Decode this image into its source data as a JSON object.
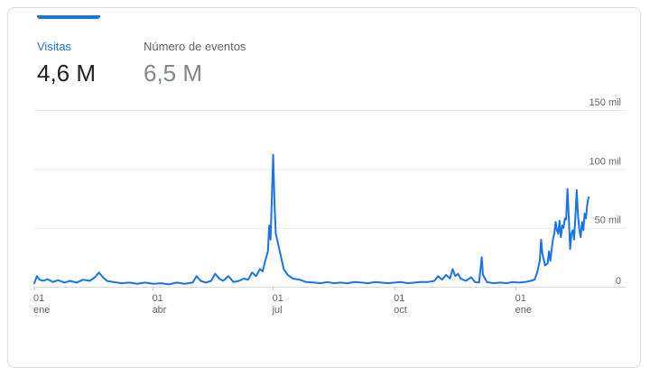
{
  "metrics": [
    {
      "label": "Visitas",
      "value": "4,6 M",
      "active": true
    },
    {
      "label": "Número de eventos",
      "value": "6,5 M",
      "active": false
    }
  ],
  "colors": {
    "accent": "#1a73e8",
    "line": "#1a73e8"
  },
  "chart_data": {
    "type": "line",
    "title": "",
    "xlabel": "",
    "ylabel": "",
    "ylim": [
      0,
      150000
    ],
    "xlim": [
      "2023-01-01",
      "2024-02-25"
    ],
    "grid": true,
    "y_axis_side": "right",
    "y_ticks": [
      {
        "value": 150000,
        "label": "150 mil"
      },
      {
        "value": 100000,
        "label": "100 mil"
      },
      {
        "value": 50000,
        "label": "50 mil"
      },
      {
        "value": 0,
        "label": "0"
      }
    ],
    "x_ticks": [
      {
        "date": "2023-01-01",
        "day": "01",
        "month": "ene"
      },
      {
        "date": "2023-04-01",
        "day": "01",
        "month": "abr"
      },
      {
        "date": "2023-07-01",
        "day": "01",
        "month": "jul"
      },
      {
        "date": "2023-10-01",
        "day": "01",
        "month": "oct"
      },
      {
        "date": "2024-01-01",
        "day": "01",
        "month": "ene"
      }
    ],
    "series": [
      {
        "points": [
          [
            "2023-01-01",
            3000
          ],
          [
            "2023-01-03",
            9000
          ],
          [
            "2023-01-05",
            6000
          ],
          [
            "2023-01-08",
            5000
          ],
          [
            "2023-01-11",
            6500
          ],
          [
            "2023-01-15",
            4000
          ],
          [
            "2023-01-19",
            5500
          ],
          [
            "2023-01-24",
            3500
          ],
          [
            "2023-01-28",
            5000
          ],
          [
            "2023-02-02",
            3500
          ],
          [
            "2023-02-07",
            6000
          ],
          [
            "2023-02-12",
            5000
          ],
          [
            "2023-02-16",
            8000
          ],
          [
            "2023-02-19",
            12000
          ],
          [
            "2023-02-22",
            8000
          ],
          [
            "2023-02-25",
            5000
          ],
          [
            "2023-03-02",
            4000
          ],
          [
            "2023-03-08",
            3000
          ],
          [
            "2023-03-14",
            3500
          ],
          [
            "2023-03-20",
            2500
          ],
          [
            "2023-03-26",
            3500
          ],
          [
            "2023-04-01",
            2500
          ],
          [
            "2023-04-07",
            3000
          ],
          [
            "2023-04-13",
            2000
          ],
          [
            "2023-04-19",
            3500
          ],
          [
            "2023-04-25",
            2500
          ],
          [
            "2023-05-01",
            3500
          ],
          [
            "2023-05-04",
            9000
          ],
          [
            "2023-05-07",
            5000
          ],
          [
            "2023-05-11",
            3500
          ],
          [
            "2023-05-15",
            5000
          ],
          [
            "2023-05-18",
            11000
          ],
          [
            "2023-05-21",
            7000
          ],
          [
            "2023-05-24",
            5000
          ],
          [
            "2023-05-28",
            9000
          ],
          [
            "2023-06-01",
            4000
          ],
          [
            "2023-06-05",
            5000
          ],
          [
            "2023-06-09",
            7000
          ],
          [
            "2023-06-12",
            6000
          ],
          [
            "2023-06-15",
            12000
          ],
          [
            "2023-06-18",
            9000
          ],
          [
            "2023-06-21",
            15000
          ],
          [
            "2023-06-23",
            13000
          ],
          [
            "2023-06-25",
            22000
          ],
          [
            "2023-06-27",
            30000
          ],
          [
            "2023-06-28",
            52000
          ],
          [
            "2023-06-29",
            40000
          ],
          [
            "2023-06-30",
            75000
          ],
          [
            "2023-07-01",
            112000
          ],
          [
            "2023-07-02",
            70000
          ],
          [
            "2023-07-03",
            45000
          ],
          [
            "2023-07-05",
            35000
          ],
          [
            "2023-07-07",
            25000
          ],
          [
            "2023-07-09",
            15000
          ],
          [
            "2023-07-12",
            10000
          ],
          [
            "2023-07-16",
            7000
          ],
          [
            "2023-07-21",
            6000
          ],
          [
            "2023-07-26",
            4000
          ],
          [
            "2023-08-01",
            3500
          ],
          [
            "2023-08-06",
            3000
          ],
          [
            "2023-08-11",
            4000
          ],
          [
            "2023-08-16",
            3000
          ],
          [
            "2023-08-21",
            3500
          ],
          [
            "2023-08-26",
            3000
          ],
          [
            "2023-09-01",
            4000
          ],
          [
            "2023-09-06",
            3500
          ],
          [
            "2023-09-11",
            3000
          ],
          [
            "2023-09-16",
            4000
          ],
          [
            "2023-09-21",
            3500
          ],
          [
            "2023-09-26",
            3000
          ],
          [
            "2023-10-01",
            3500
          ],
          [
            "2023-10-06",
            4000
          ],
          [
            "2023-10-11",
            3000
          ],
          [
            "2023-10-16",
            3500
          ],
          [
            "2023-10-21",
            4000
          ],
          [
            "2023-10-26",
            4000
          ],
          [
            "2023-10-31",
            5000
          ],
          [
            "2023-11-03",
            9000
          ],
          [
            "2023-11-06",
            6000
          ],
          [
            "2023-11-09",
            10000
          ],
          [
            "2023-11-12",
            7000
          ],
          [
            "2023-11-14",
            15000
          ],
          [
            "2023-11-16",
            9000
          ],
          [
            "2023-11-18",
            11000
          ],
          [
            "2023-11-20",
            7000
          ],
          [
            "2023-11-24",
            5000
          ],
          [
            "2023-11-28",
            8000
          ],
          [
            "2023-12-01",
            4000
          ],
          [
            "2023-12-04",
            3500
          ],
          [
            "2023-12-06",
            25000
          ],
          [
            "2023-12-07",
            10000
          ],
          [
            "2023-12-10",
            4000
          ],
          [
            "2023-12-15",
            3000
          ],
          [
            "2023-12-20",
            3500
          ],
          [
            "2023-12-25",
            3000
          ],
          [
            "2023-12-29",
            4000
          ],
          [
            "2024-01-03",
            3500
          ],
          [
            "2024-01-08",
            4000
          ],
          [
            "2024-01-12",
            5000
          ],
          [
            "2024-01-15",
            6000
          ],
          [
            "2024-01-17",
            12000
          ],
          [
            "2024-01-19",
            22000
          ],
          [
            "2024-01-20",
            40000
          ],
          [
            "2024-01-21",
            28000
          ],
          [
            "2024-01-23",
            18000
          ],
          [
            "2024-01-25",
            20000
          ],
          [
            "2024-01-26",
            30000
          ],
          [
            "2024-01-27",
            22000
          ],
          [
            "2024-01-28",
            32000
          ],
          [
            "2024-01-29",
            40000
          ],
          [
            "2024-01-30",
            45000
          ],
          [
            "2024-01-31",
            55000
          ],
          [
            "2024-02-01",
            48000
          ],
          [
            "2024-02-02",
            45000
          ],
          [
            "2024-02-03",
            56000
          ],
          [
            "2024-02-04",
            42000
          ],
          [
            "2024-02-05",
            52000
          ],
          [
            "2024-02-06",
            50000
          ],
          [
            "2024-02-07",
            58000
          ],
          [
            "2024-02-08",
            57000
          ],
          [
            "2024-02-09",
            83000
          ],
          [
            "2024-02-10",
            58000
          ],
          [
            "2024-02-11",
            32000
          ],
          [
            "2024-02-12",
            45000
          ],
          [
            "2024-02-13",
            48000
          ],
          [
            "2024-02-14",
            40000
          ],
          [
            "2024-02-15",
            60000
          ],
          [
            "2024-02-16",
            82000
          ],
          [
            "2024-02-17",
            60000
          ],
          [
            "2024-02-18",
            48000
          ],
          [
            "2024-02-19",
            42000
          ],
          [
            "2024-02-20",
            55000
          ],
          [
            "2024-02-21",
            48000
          ],
          [
            "2024-02-22",
            62000
          ],
          [
            "2024-02-23",
            58000
          ],
          [
            "2024-02-24",
            70000
          ],
          [
            "2024-02-25",
            76000
          ]
        ]
      }
    ]
  }
}
